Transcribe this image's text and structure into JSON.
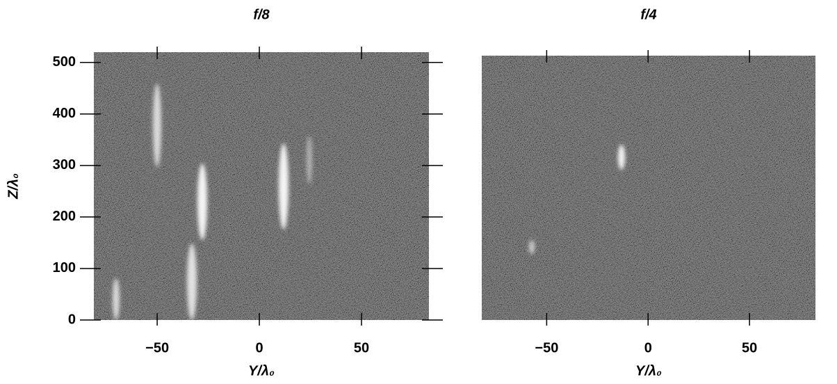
{
  "chart_data": [
    {
      "type": "image",
      "title": "f/8",
      "xlabel": "Y/λ₀",
      "ylabel": "Z/λ₀",
      "xlim": [
        -81,
        83
      ],
      "ylim": [
        0,
        520
      ],
      "xticks": [
        {
          "value": -50,
          "label": "−50"
        },
        0,
        50
      ],
      "yticks": [
        0,
        100,
        200,
        300,
        400,
        500
      ]
    },
    {
      "type": "image",
      "title": "f/4",
      "xlabel": "Y/λ₀",
      "xlim": [
        -82,
        82.5
      ],
      "ylim": [
        0,
        520
      ],
      "xticks": [
        {
          "value": -50,
          "label": "−50"
        },
        0,
        50
      ]
    }
  ]
}
